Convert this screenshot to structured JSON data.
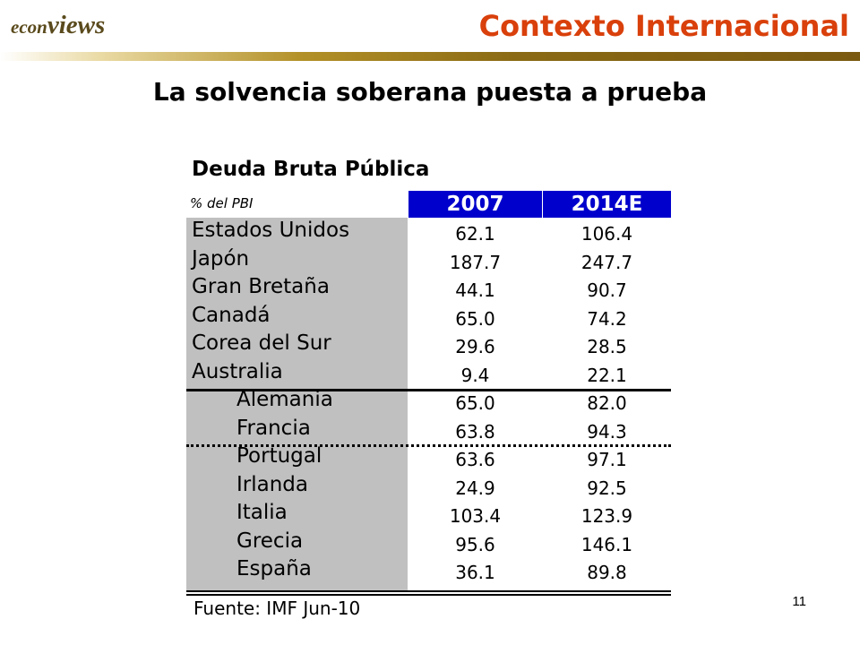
{
  "header": {
    "logo_part1": "econ",
    "logo_part2": "views",
    "section_title": "Contexto Internacional"
  },
  "slide": {
    "title": "La solvencia soberana puesta a prueba",
    "page_number": "11"
  },
  "table": {
    "title": "Deuda Bruta Pública",
    "subtitle": "% del PBI",
    "columns": [
      "2007",
      "2014E"
    ],
    "rows": [
      {
        "country": "Estados Unidos",
        "v2007": "62.1",
        "v2014": "106.4"
      },
      {
        "country": "Japón",
        "v2007": "187.7",
        "v2014": "247.7"
      },
      {
        "country": "Gran Bretaña",
        "v2007": "44.1",
        "v2014": "90.7"
      },
      {
        "country": "Canadá",
        "v2007": "65.0",
        "v2014": "74.2"
      },
      {
        "country": "Corea del Sur",
        "v2007": "29.6",
        "v2014": "28.5"
      },
      {
        "country": "Australia",
        "v2007": "9.4",
        "v2014": "22.1"
      },
      {
        "country": "Alemania",
        "v2007": "65.0",
        "v2014": "82.0"
      },
      {
        "country": "Francia",
        "v2007": "63.8",
        "v2014": "94.3"
      },
      {
        "country": "Portugal",
        "v2007": "63.6",
        "v2014": "97.1"
      },
      {
        "country": "Irlanda",
        "v2007": "24.9",
        "v2014": "92.5"
      },
      {
        "country": "Italia",
        "v2007": "103.4",
        "v2014": "123.9"
      },
      {
        "country": "Grecia",
        "v2007": "95.6",
        "v2014": "146.1"
      },
      {
        "country": "España",
        "v2007": "36.1",
        "v2014": "89.8"
      }
    ],
    "source": "Fuente: IMF Jun-10"
  },
  "colors": {
    "title_orange": "#d9400b",
    "header_blue": "#0000cc",
    "country_gray": "#c0c0c0",
    "logo_brown": "#5a4a1c"
  }
}
